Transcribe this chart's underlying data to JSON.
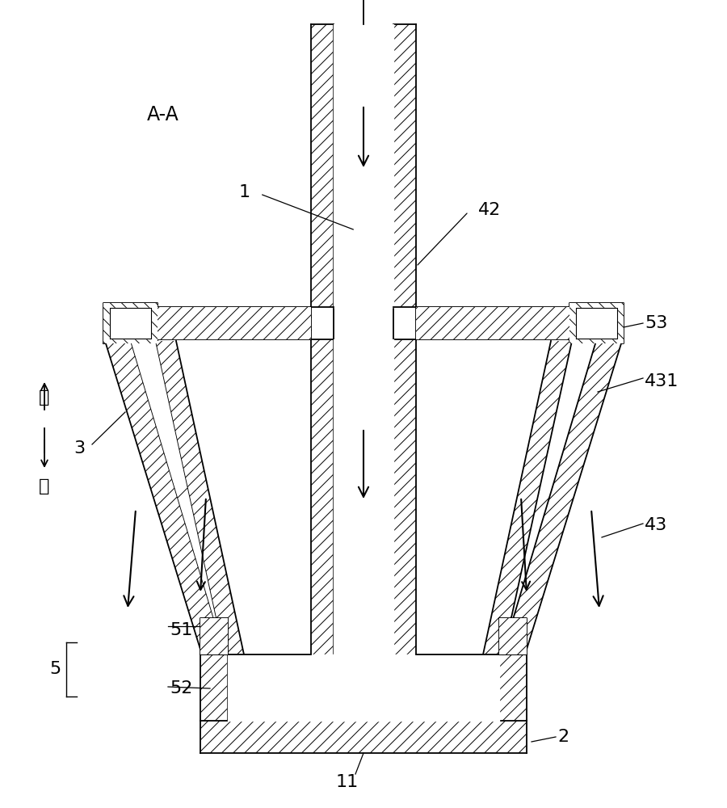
{
  "bg_color": "#ffffff",
  "line_color": "#000000",
  "figsize": [
    9.0,
    10.0
  ],
  "dpi": 100,
  "labels": {
    "AA": "A-A",
    "up": "上",
    "down": "下",
    "1": "1",
    "2": "2",
    "3": "3",
    "5": "5",
    "11": "11",
    "42": "42",
    "43": "43",
    "51": "51",
    "52": "52",
    "53": "53",
    "431": "431"
  }
}
